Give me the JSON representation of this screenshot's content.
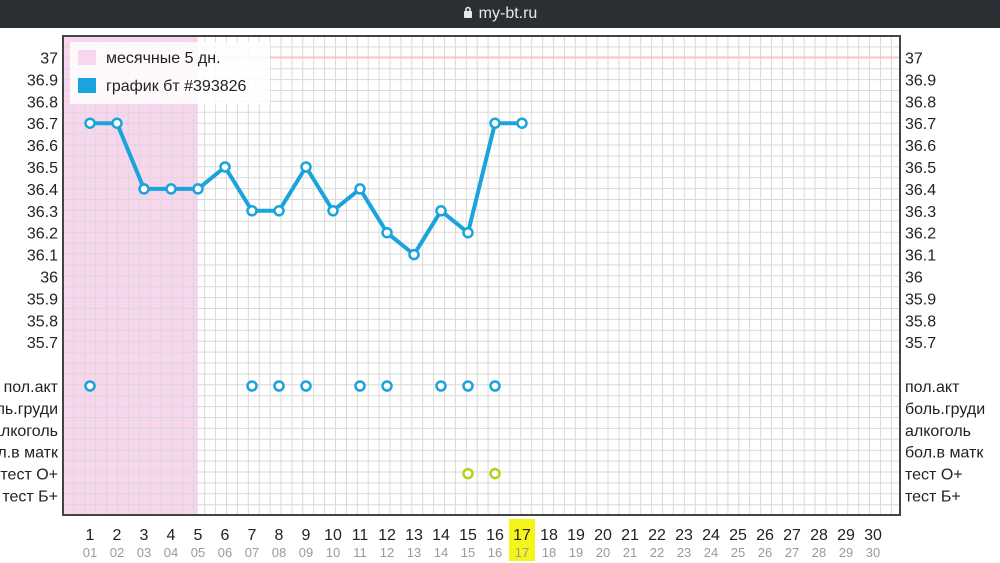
{
  "browser": {
    "url": "my-bt.ru"
  },
  "colors": {
    "menses": "#f8d6ee",
    "line": "#1aa3dc",
    "test_marker": "#b5cf1a",
    "highlight": "#f5f51a",
    "coverline": "#f7c3c3"
  },
  "chart_data": {
    "type": "line",
    "legend": [
      {
        "label": "месячные 5 дн.",
        "color": "#f8d6ee"
      },
      {
        "label": "график бт #393826",
        "color": "#1aa3dc"
      }
    ],
    "x_days": [
      1,
      2,
      3,
      4,
      5,
      6,
      7,
      8,
      9,
      10,
      11,
      12,
      13,
      14,
      15,
      16,
      17,
      18,
      19,
      20,
      21,
      22,
      23,
      24,
      25,
      26,
      27,
      28,
      29,
      30
    ],
    "x_dates": [
      "01",
      "02",
      "03",
      "04",
      "05",
      "06",
      "07",
      "08",
      "09",
      "10",
      "11",
      "12",
      "13",
      "14",
      "15",
      "16",
      "17",
      "18",
      "19",
      "20",
      "21",
      "22",
      "23",
      "24",
      "25",
      "26",
      "27",
      "28",
      "29",
      "30"
    ],
    "highlight_day": 17,
    "menses_days": [
      1,
      5
    ],
    "ylim": [
      35.7,
      37
    ],
    "y_ticks": [
      "37",
      "36.9",
      "36.8",
      "36.7",
      "36.6",
      "36.5",
      "36.4",
      "36.3",
      "36.2",
      "36.1",
      "36",
      "35.9",
      "35.8",
      "35.7"
    ],
    "coverline": 37,
    "series": [
      {
        "name": "график бт #393826",
        "x": [
          1,
          2,
          3,
          4,
          5,
          6,
          7,
          8,
          9,
          10,
          11,
          12,
          13,
          14,
          15,
          16,
          17
        ],
        "values": [
          36.7,
          36.7,
          36.4,
          36.4,
          36.4,
          36.5,
          36.3,
          36.3,
          36.5,
          36.3,
          36.4,
          36.2,
          36.1,
          36.3,
          36.2,
          36.7,
          36.7
        ]
      }
    ],
    "event_rows": [
      "пол.акт",
      "боль.груди",
      "алкоголь",
      "бол.в матк",
      "тест О+",
      "тест Б+"
    ],
    "events": [
      {
        "row": "пол.акт",
        "days": [
          1,
          7,
          8,
          9,
          11,
          12,
          14,
          15,
          16
        ]
      },
      {
        "row": "тест О+",
        "days": [
          15,
          16
        ]
      }
    ]
  }
}
